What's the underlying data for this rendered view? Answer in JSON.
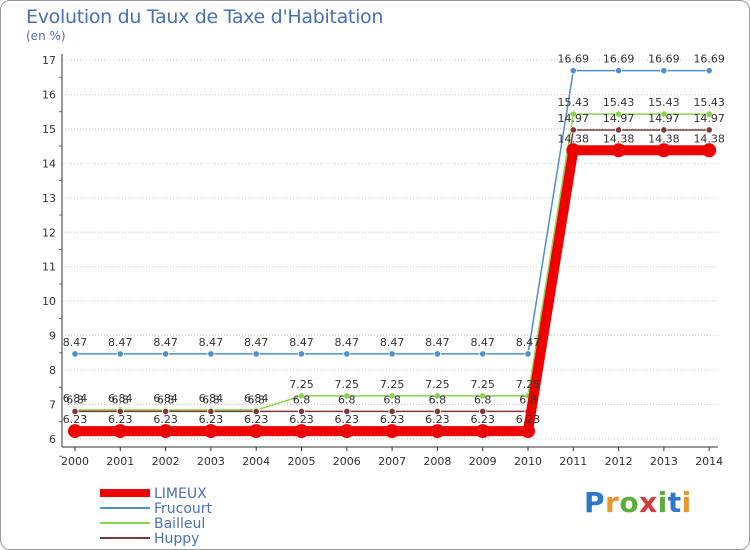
{
  "colors": {
    "LIMEUX": "#ee0000",
    "Frucourt": "#4f8fcd",
    "Bailleul": "#88d44a",
    "Huppy": "#7a3a3a",
    "axis": "#333333",
    "grid": "#c8c8c8",
    "title": "#4a6fb5"
  },
  "brand": {
    "logo_letters": [
      "P",
      "r",
      "o",
      "x",
      "i",
      "t",
      "i"
    ],
    "logo_colors": [
      "#2e77c9",
      "#e8962a",
      "#5cae3b",
      "#d63b3b",
      "#5cae3b",
      "#2e77c9",
      "#e8962a"
    ]
  },
  "chart_data": {
    "type": "line",
    "title": "Evolution du Taux de Taxe d'Habitation",
    "ylabel": "(en %)",
    "xlabel": "",
    "categories": [
      "2000",
      "2001",
      "2002",
      "2003",
      "2004",
      "2005",
      "2006",
      "2007",
      "2008",
      "2009",
      "2010",
      "2011",
      "2012",
      "2013",
      "2014"
    ],
    "ylim": [
      6,
      17
    ],
    "yticks": [
      "6",
      "7",
      "8",
      "9",
      "10",
      "11",
      "12",
      "13",
      "14",
      "15",
      "16",
      "17"
    ],
    "grid": true,
    "legend_position": "bottom-left",
    "series": [
      {
        "name": "LIMEUX",
        "values": [
          6.23,
          6.23,
          6.23,
          6.23,
          6.23,
          6.23,
          6.23,
          6.23,
          6.23,
          6.23,
          6.23,
          14.38,
          14.38,
          14.38,
          14.38
        ],
        "labels": [
          "6.23",
          "6.23",
          "6.23",
          "6.23",
          "6.23",
          "6.23",
          "6.23",
          "6.23",
          "6.23",
          "6.23",
          "6.23",
          "14.38",
          "14.38",
          "14.38",
          "14.38"
        ]
      },
      {
        "name": "Frucourt",
        "values": [
          8.47,
          8.47,
          8.47,
          8.47,
          8.47,
          8.47,
          8.47,
          8.47,
          8.47,
          8.47,
          8.47,
          16.69,
          16.69,
          16.69,
          16.69
        ],
        "labels": [
          "8.47",
          "8.47",
          "8.47",
          "8.47",
          "8.47",
          "8.47",
          "8.47",
          "8.47",
          "8.47",
          "8.47",
          "8.47",
          "16.69",
          "16.69",
          "16.69",
          "16.69"
        ]
      },
      {
        "name": "Bailleul",
        "values": [
          6.84,
          6.84,
          6.84,
          6.84,
          6.84,
          7.25,
          7.25,
          7.25,
          7.25,
          7.25,
          7.25,
          15.43,
          15.43,
          15.43,
          15.43
        ],
        "labels": [
          "6.84",
          "6.84",
          "6.84",
          "6.84",
          "6.84",
          "7.25",
          "7.25",
          "7.25",
          "7.25",
          "7.25",
          "7.25",
          "15.43",
          "15.43",
          "15.43",
          "15.43"
        ]
      },
      {
        "name": "Huppy",
        "values": [
          6.8,
          6.8,
          6.8,
          6.8,
          6.8,
          6.8,
          6.8,
          6.8,
          6.8,
          6.8,
          6.8,
          14.97,
          14.97,
          14.97,
          14.97
        ],
        "labels": [
          "6.8",
          "6.8",
          "6.8",
          "6.8",
          "6.8",
          "6.8",
          "6.8",
          "6.8",
          "6.8",
          "6.8",
          "6.8",
          "14.97",
          "14.97",
          "14.97",
          "14.97"
        ]
      }
    ]
  }
}
